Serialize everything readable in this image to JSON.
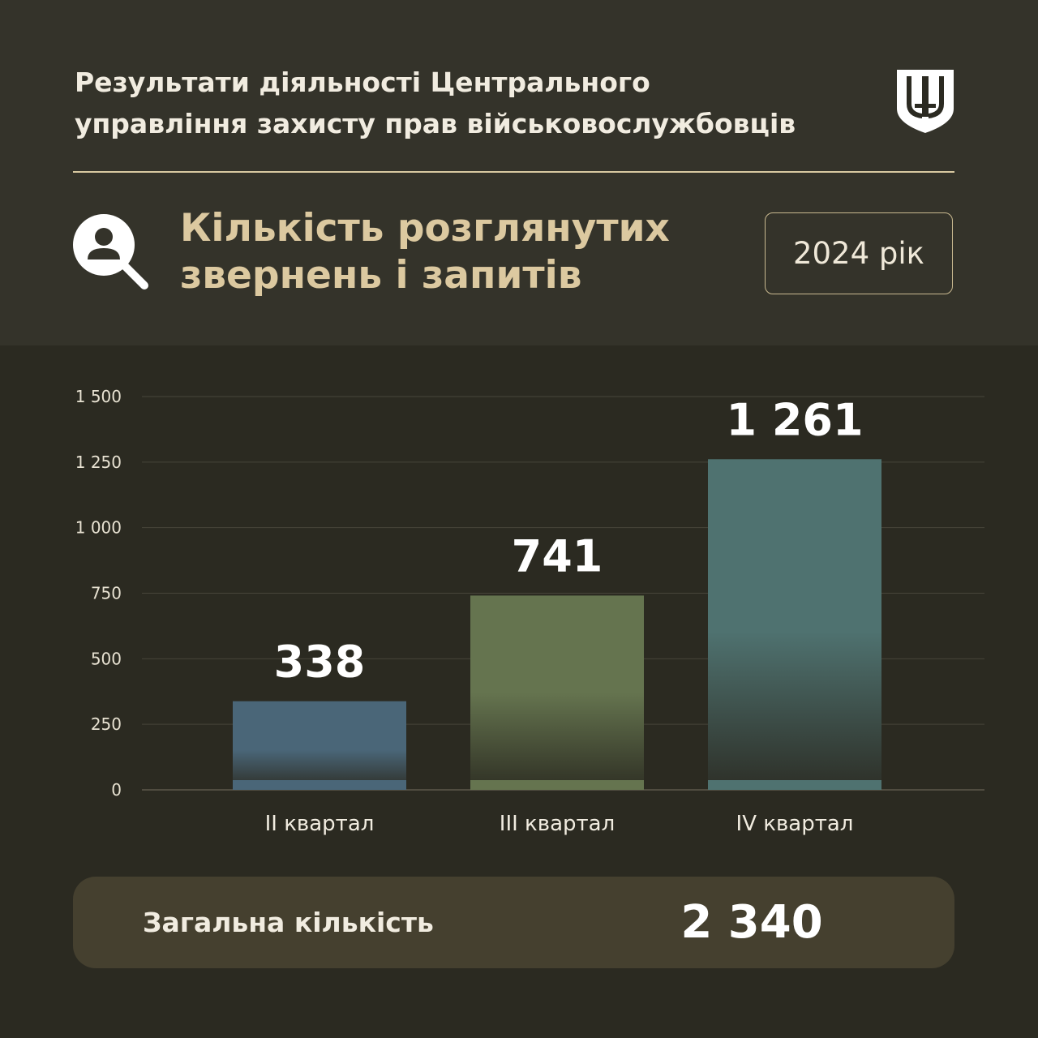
{
  "header": {
    "title_line1": "Результати діяльності Центрального",
    "title_line2": "управління захисту прав військовослужбовців",
    "emblem_icon": "tryzub-shield-icon"
  },
  "section": {
    "icon": "user-search-icon",
    "title_line1": "Кількість розглянутих",
    "title_line2": "звернень і запитів",
    "year_badge": "2024 рік"
  },
  "chart_data": {
    "type": "bar",
    "categories": [
      "II квартал",
      "III квартал",
      "IV квартал"
    ],
    "values": [
      338,
      741,
      1261
    ],
    "value_labels": [
      "338",
      "741",
      "1 261"
    ],
    "ylim": [
      0,
      1500
    ],
    "yticks": [
      0,
      250,
      500,
      750,
      1000,
      1250,
      1500
    ],
    "ytick_labels": [
      "0",
      "250",
      "500",
      "750",
      "1 000",
      "1 250",
      "1 500"
    ],
    "grid": true,
    "colors": [
      "#4a6678",
      "#65744f",
      "#4f7270"
    ]
  },
  "total": {
    "label": "Загальна кількість",
    "value": "2 340"
  },
  "colors": {
    "background": "#2b2a21",
    "header_band": "#34332a",
    "accent": "#dcc9a0",
    "panel": "#45402f"
  }
}
